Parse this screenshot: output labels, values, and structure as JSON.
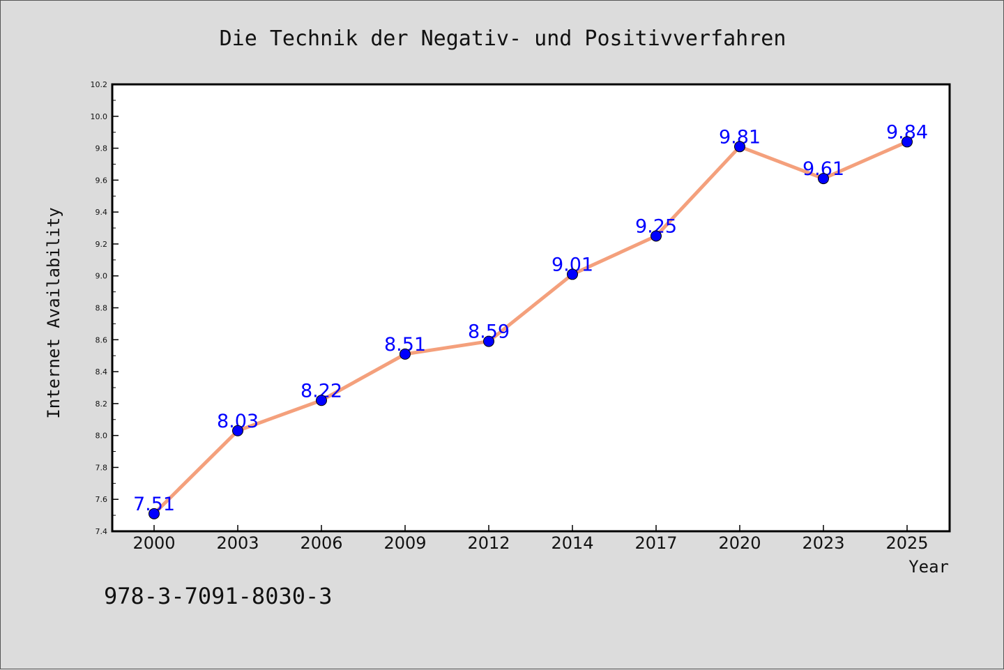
{
  "chart_data": {
    "type": "line",
    "title": "Die Technik der Negativ- und Positivverfahren",
    "xlabel": "Year",
    "ylabel": "Internet Availability",
    "categories": [
      "2000",
      "2003",
      "2006",
      "2009",
      "2012",
      "2014",
      "2017",
      "2020",
      "2023",
      "2025"
    ],
    "series": [
      {
        "values": [
          7.51,
          8.03,
          8.22,
          8.51,
          8.59,
          9.01,
          9.25,
          9.81,
          9.61,
          9.84
        ],
        "data_labels": [
          "7.51",
          "8.03",
          "8.22",
          "8.51",
          "8.59",
          "9.01",
          "9.25",
          "9.81",
          "9.61",
          "9.84"
        ],
        "line_color": "#f4a07c",
        "marker_color": "#0000ff"
      }
    ],
    "ylim": [
      7.4,
      10.2
    ],
    "yticks": [
      "7.4",
      "7.6",
      "7.8",
      "8.0",
      "8.2",
      "8.4",
      "8.6",
      "8.8",
      "9.0",
      "9.2",
      "9.4",
      "9.6",
      "9.8",
      "10.0",
      "10.2"
    ],
    "grid": false,
    "legend": "none"
  },
  "annotation": {
    "isbn": "978-3-7091-8030-3"
  },
  "colors": {
    "background": "#dcdcdc",
    "plot_background": "#ffffff",
    "label_color": "#0000ff"
  }
}
